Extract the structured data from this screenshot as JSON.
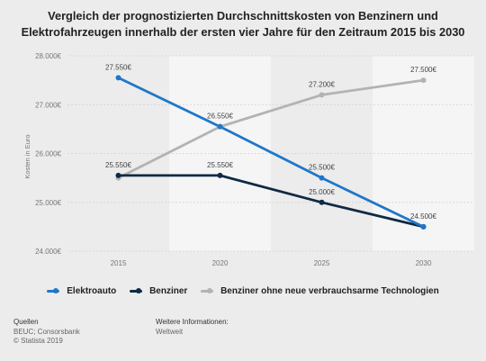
{
  "title": "Vergleich der prognostizierten Durchschnittskosten von Benzinern und Elektrofahrzeugen innerhalb der ersten vier Jahre für den Zeitraum 2015 bis 2030",
  "chart_data": {
    "type": "line",
    "x": [
      "2015",
      "2020",
      "2025",
      "2030"
    ],
    "ylabel": "Kosten in Euro",
    "xlabel": "",
    "ylim": [
      24000,
      28000
    ],
    "yticks": [
      "24.000€",
      "25.000€",
      "26.000€",
      "27.000€",
      "28.000€"
    ],
    "grid": true,
    "legend_position": "bottom",
    "series": [
      {
        "name": "Elektroauto",
        "color": "#1f77c9",
        "values": [
          27550,
          26550,
          25500,
          24500
        ],
        "labels": [
          "27.550€",
          "26.550€",
          "25.500€",
          "24.500€"
        ]
      },
      {
        "name": "Benziner",
        "color": "#0f2a44",
        "values": [
          25550,
          25550,
          25000,
          24500
        ],
        "labels": [
          "25.550€",
          "25.550€",
          "25.000€",
          ""
        ]
      },
      {
        "name": "Benziner ohne neue verbrauchsarme Technologien",
        "color": "#b3b3b3",
        "values": [
          25500,
          26550,
          27200,
          27500
        ],
        "labels": [
          "",
          "",
          "27.200€",
          "27.500€"
        ]
      }
    ]
  },
  "footer": {
    "sources_heading": "Quellen",
    "sources_line1": "BEUC; Consorsbank",
    "sources_line2": "© Statista 2019",
    "info_heading": "Weitere Informationen:",
    "info_text": "Weltweit"
  }
}
